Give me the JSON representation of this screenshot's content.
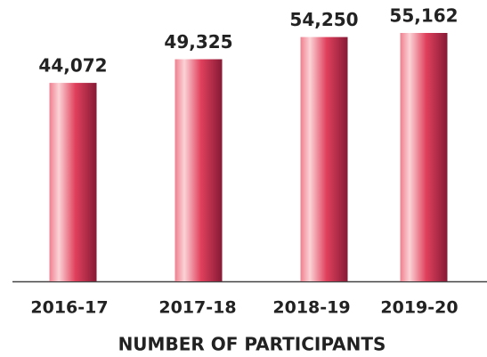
{
  "chart_data": {
    "type": "bar",
    "title": "NUMBER OF PARTICIPANTS",
    "categories": [
      "2016-17",
      "2017-18",
      "2018-19",
      "2019-20"
    ],
    "values": [
      44072,
      49325,
      54250,
      55162
    ],
    "value_labels": [
      "44,072",
      "49,325",
      "54,250",
      "55,162"
    ]
  }
}
